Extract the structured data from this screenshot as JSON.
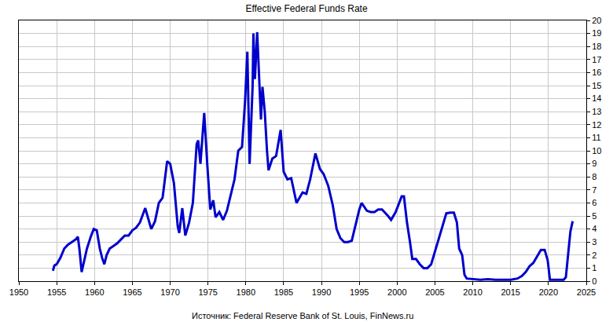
{
  "chart_data": {
    "type": "line",
    "title": "Effective Federal Funds Rate",
    "source": "Источник: Federal Reserve Bank of St. Louis, FinNews.ru",
    "color": "#0000cc",
    "grid": true,
    "xlim": [
      1950,
      2025
    ],
    "xticks": [
      1950,
      1955,
      1960,
      1965,
      1970,
      1975,
      1980,
      1985,
      1990,
      1995,
      2000,
      2005,
      2010,
      2015,
      2020,
      2025
    ],
    "ylim": [
      0,
      20
    ],
    "yticks": [
      0,
      1,
      2,
      3,
      4,
      5,
      6,
      7,
      8,
      9,
      10,
      11,
      12,
      13,
      14,
      15,
      16,
      17,
      18,
      19,
      20
    ],
    "x": [
      1954.5,
      1954.7,
      1955.0,
      1955.5,
      1956.0,
      1956.5,
      1957.0,
      1957.5,
      1957.8,
      1958.0,
      1958.3,
      1958.6,
      1959.0,
      1959.5,
      1959.9,
      1960.3,
      1960.7,
      1961.0,
      1961.3,
      1961.6,
      1962.0,
      1962.5,
      1963.0,
      1963.5,
      1964.0,
      1964.5,
      1965.0,
      1965.5,
      1966.0,
      1966.7,
      1967.0,
      1967.5,
      1968.0,
      1968.5,
      1969.0,
      1969.6,
      1970.0,
      1970.5,
      1971.0,
      1971.2,
      1971.6,
      1972.0,
      1972.5,
      1973.0,
      1973.5,
      1973.7,
      1974.0,
      1974.5,
      1974.9,
      1975.3,
      1975.7,
      1976.0,
      1976.5,
      1977.0,
      1977.5,
      1978.0,
      1978.5,
      1979.0,
      1979.5,
      1979.9,
      1980.2,
      1980.5,
      1980.9,
      1981.0,
      1981.2,
      1981.5,
      1981.8,
      1982.0,
      1982.2,
      1982.5,
      1982.8,
      1983.0,
      1983.5,
      1984.0,
      1984.6,
      1985.0,
      1985.5,
      1986.0,
      1986.7,
      1987.0,
      1987.5,
      1988.0,
      1988.5,
      1989.2,
      1989.8,
      1990.3,
      1990.9,
      1991.5,
      1992.0,
      1992.5,
      1993.0,
      1993.5,
      1994.0,
      1994.5,
      1995.0,
      1995.3,
      1996.0,
      1996.5,
      1997.0,
      1997.5,
      1998.0,
      1998.8,
      1999.2,
      1999.8,
      2000.3,
      2000.6,
      2000.9,
      2001.3,
      2001.7,
      2002.0,
      2002.5,
      2003.0,
      2003.5,
      2004.0,
      2004.5,
      2005.0,
      2005.5,
      2006.0,
      2006.5,
      2007.0,
      2007.5,
      2007.9,
      2008.2,
      2008.6,
      2008.9,
      2009.2,
      2010.0,
      2011.0,
      2012.0,
      2013.0,
      2014.0,
      2015.0,
      2015.9,
      2016.5,
      2017.0,
      2017.5,
      2018.0,
      2018.5,
      2019.0,
      2019.5,
      2019.9,
      2020.2,
      2021.0,
      2022.0,
      2022.3,
      2022.6,
      2022.9,
      2023.2
    ],
    "values": [
      0.8,
      1.2,
      1.3,
      1.8,
      2.5,
      2.8,
      3.0,
      3.2,
      3.4,
      2.5,
      0.7,
      1.5,
      2.5,
      3.4,
      4.0,
      3.9,
      2.5,
      1.8,
      1.3,
      2.0,
      2.5,
      2.7,
      2.9,
      3.2,
      3.5,
      3.5,
      3.9,
      4.1,
      4.5,
      5.6,
      5.0,
      4.0,
      4.6,
      6.0,
      6.4,
      9.2,
      9.0,
      7.5,
      4.2,
      3.7,
      5.6,
      3.5,
      4.5,
      6.0,
      10.5,
      10.8,
      9.0,
      12.9,
      9.0,
      5.5,
      6.2,
      4.9,
      5.3,
      4.7,
      5.4,
      6.7,
      7.8,
      10.0,
      10.3,
      13.8,
      17.6,
      9.0,
      15.0,
      19.0,
      15.5,
      19.1,
      15.0,
      12.4,
      14.9,
      13.0,
      10.0,
      8.5,
      9.4,
      9.6,
      11.6,
      8.4,
      7.8,
      7.9,
      6.0,
      6.3,
      6.8,
      6.7,
      7.8,
      9.8,
      8.6,
      8.2,
      7.3,
      5.8,
      4.0,
      3.3,
      3.0,
      3.0,
      3.1,
      4.3,
      5.5,
      6.0,
      5.4,
      5.3,
      5.3,
      5.5,
      5.5,
      5.0,
      4.7,
      5.3,
      6.0,
      6.5,
      6.5,
      4.5,
      3.0,
      1.7,
      1.7,
      1.3,
      1.0,
      1.0,
      1.3,
      2.3,
      3.2,
      4.3,
      5.2,
      5.25,
      5.25,
      4.5,
      2.5,
      2.0,
      0.5,
      0.2,
      0.15,
      0.1,
      0.15,
      0.1,
      0.1,
      0.1,
      0.2,
      0.4,
      0.7,
      1.15,
      1.4,
      1.9,
      2.4,
      2.4,
      1.6,
      0.1,
      0.1,
      0.1,
      0.3,
      2.3,
      3.8,
      4.6
    ]
  }
}
